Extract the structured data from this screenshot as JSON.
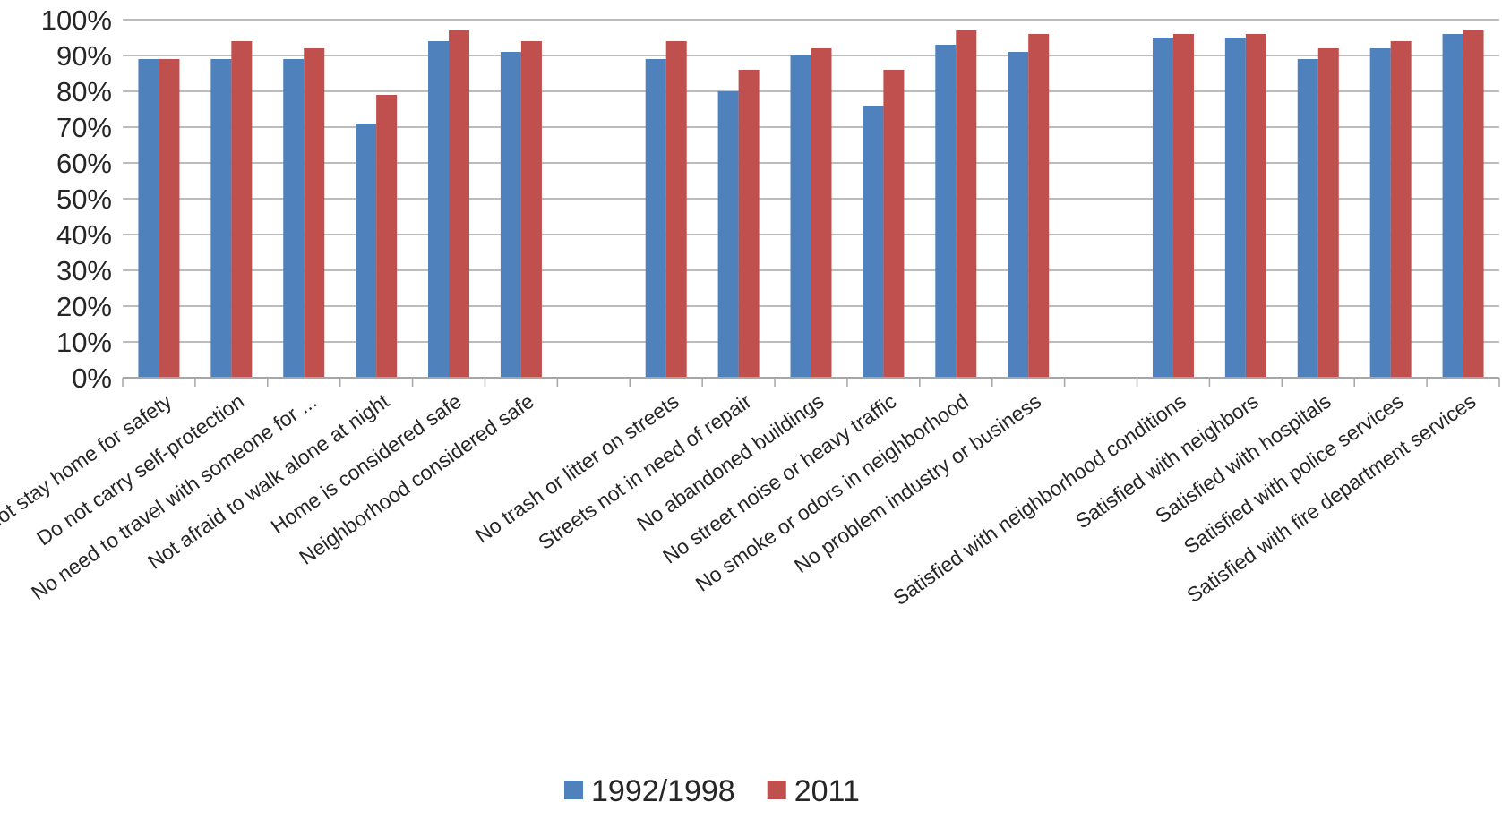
{
  "chart_data": {
    "type": "bar",
    "title": "",
    "xlabel": "",
    "ylabel": "",
    "ylim": [
      0,
      100
    ],
    "ytick_step": 10,
    "ytick_suffix": "%",
    "grid": true,
    "legend_position": "bottom",
    "categories": [
      "Do not stay home for safety",
      "Do not carry self-protection",
      "No need to travel with someone for ...",
      "Not afraid to walk alone at night",
      "Home is considered safe",
      "Neighborhood considered safe",
      "",
      "No trash or litter on streets",
      "Streets not in need of repair",
      "No abandoned buildings",
      "No street noise or heavy traffic",
      "No smoke or odors in neighborhood",
      "No problem industry or business",
      "",
      "Satisfied with neighborhood conditions",
      "Satisfied with neighbors",
      "Satisfied with hospitals",
      "Satisfied with police services",
      "Satisfied with fire department services"
    ],
    "series": [
      {
        "name": "1992/1998",
        "color": "#4f81bd",
        "values": [
          89,
          89,
          89,
          71,
          94,
          91,
          null,
          89,
          80,
          90,
          76,
          93,
          91,
          null,
          95,
          95,
          89,
          92,
          96
        ]
      },
      {
        "name": "2011",
        "color": "#c0504d",
        "values": [
          89,
          94,
          92,
          79,
          97,
          94,
          null,
          94,
          86,
          92,
          86,
          97,
          96,
          null,
          96,
          96,
          92,
          94,
          97
        ]
      }
    ]
  }
}
